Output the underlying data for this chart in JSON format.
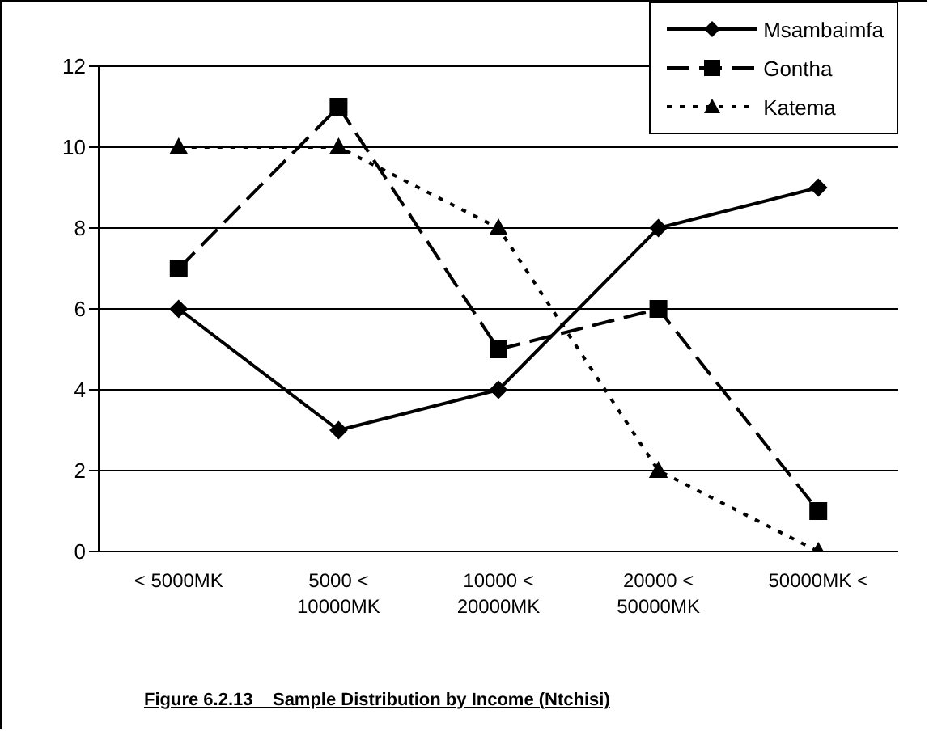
{
  "chart_data": {
    "type": "line",
    "title": "Figure 6.2.13    Sample Distribution by Income (Ntchisi)",
    "categories": [
      "< 5000MK",
      "5000 < 10000MK",
      "10000 < 20000MK",
      "20000 < 50000MK",
      "50000MK <"
    ],
    "series": [
      {
        "name": "Msambaimfa",
        "color": "#000000",
        "marker": "diamond",
        "line_style": "solid",
        "values": [
          6,
          3,
          4,
          8,
          9
        ]
      },
      {
        "name": "Gontha",
        "color": "#000000",
        "marker": "square",
        "line_style": "dashed",
        "values": [
          7,
          11,
          5,
          6,
          1
        ]
      },
      {
        "name": "Katema",
        "color": "#000000",
        "marker": "triangle",
        "line_style": "dotted",
        "values": [
          10,
          10,
          8,
          2,
          0
        ]
      }
    ],
    "ylim": [
      0,
      12
    ],
    "yticks": [
      0,
      2,
      4,
      6,
      8,
      10,
      12
    ],
    "grid": "y",
    "legend": "top right"
  }
}
